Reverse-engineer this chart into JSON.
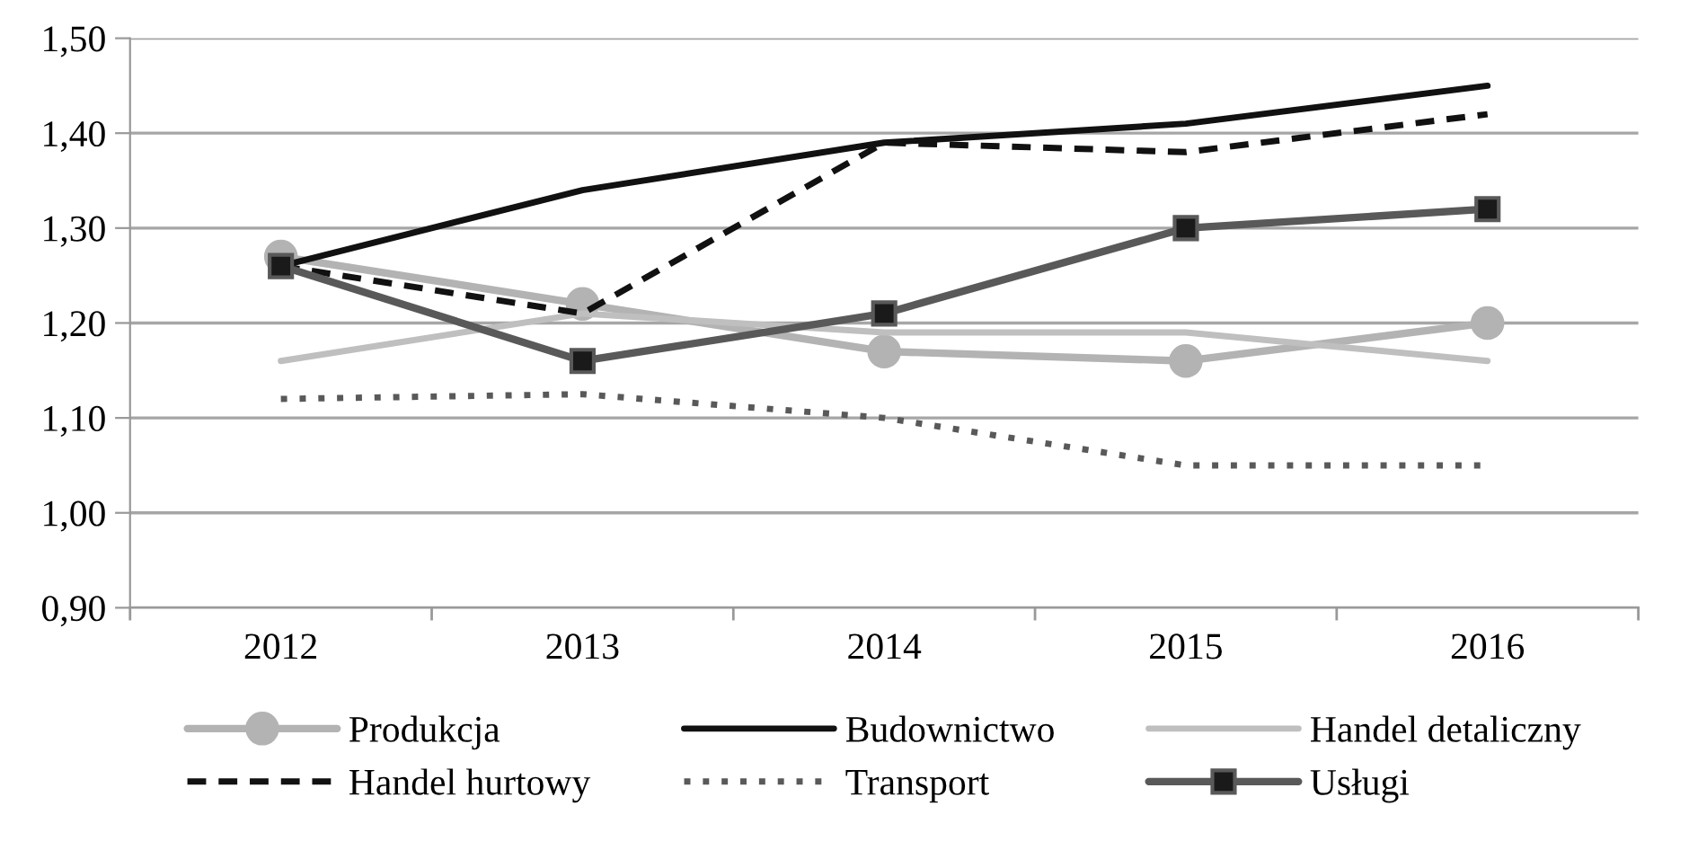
{
  "chart_data": {
    "type": "line",
    "categories": [
      "2012",
      "2013",
      "2014",
      "2015",
      "2016"
    ],
    "series": [
      {
        "name": "Produkcja",
        "color": "#b3b3b3",
        "marker": "circle",
        "line_style": "solid",
        "values": [
          1.27,
          1.22,
          1.17,
          1.16,
          1.2
        ]
      },
      {
        "name": "Budownictwo",
        "color": "#111111",
        "marker": "none",
        "line_style": "solid",
        "values": [
          1.26,
          1.34,
          1.39,
          1.41,
          1.45
        ]
      },
      {
        "name": "Handel detaliczny",
        "color": "#bfbfbf",
        "marker": "none",
        "line_style": "solid",
        "values": [
          1.16,
          1.21,
          1.19,
          1.19,
          1.16
        ]
      },
      {
        "name": "Handel hurtowy",
        "color": "#111111",
        "marker": "none",
        "line_style": "dashed",
        "values": [
          1.26,
          1.21,
          1.39,
          1.38,
          1.42
        ]
      },
      {
        "name": "Transport",
        "color": "#595959",
        "marker": "none",
        "line_style": "dotted",
        "values": [
          1.12,
          1.125,
          1.1,
          1.05,
          1.05
        ]
      },
      {
        "name": "Usługi",
        "color": "#595959",
        "marker": "square",
        "line_style": "solid",
        "values": [
          1.26,
          1.16,
          1.21,
          1.3,
          1.32
        ]
      }
    ],
    "ylim": [
      0.9,
      1.5
    ],
    "yticks": [
      {
        "value": 0.9,
        "label": "0,90"
      },
      {
        "value": 1.0,
        "label": "1,00"
      },
      {
        "value": 1.1,
        "label": "1,10"
      },
      {
        "value": 1.2,
        "label": "1,20"
      },
      {
        "value": 1.3,
        "label": "1,30"
      },
      {
        "value": 1.4,
        "label": "1,40"
      },
      {
        "value": 1.5,
        "label": "1,50"
      }
    ],
    "grid": "y",
    "legend": "bottom"
  }
}
